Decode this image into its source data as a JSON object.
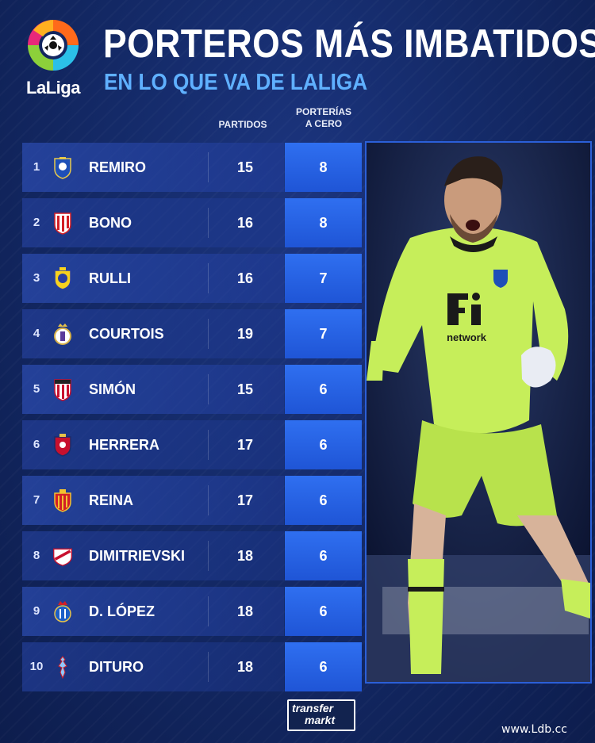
{
  "brand": {
    "logo_text": "LaLiga"
  },
  "header": {
    "title": "PORTEROS MÁS IMBATIDOS",
    "subtitle": "EN LO QUE VA DE LALIGA",
    "col_partidos": "PARTIDOS",
    "col_cero_line1": "PORTERÍAS",
    "col_cero_line2": "A CERO"
  },
  "rows": [
    {
      "rank": "1",
      "name": "REMIRO",
      "matches": "15",
      "clean": "8",
      "crest": "real-sociedad-crest"
    },
    {
      "rank": "2",
      "name": "BONO",
      "matches": "16",
      "clean": "8",
      "crest": "sevilla-crest"
    },
    {
      "rank": "3",
      "name": "RULLI",
      "matches": "16",
      "clean": "7",
      "crest": "villarreal-crest"
    },
    {
      "rank": "4",
      "name": "COURTOIS",
      "matches": "19",
      "clean": "7",
      "crest": "real-madrid-crest"
    },
    {
      "rank": "5",
      "name": "SIMÓN",
      "matches": "15",
      "clean": "6",
      "crest": "athletic-crest"
    },
    {
      "rank": "6",
      "name": "HERRERA",
      "matches": "17",
      "clean": "6",
      "crest": "osasuna-crest"
    },
    {
      "rank": "7",
      "name": "REINA",
      "matches": "17",
      "clean": "6",
      "crest": "mallorca-crest"
    },
    {
      "rank": "8",
      "name": "DIMITRIEVSKI",
      "matches": "18",
      "clean": "6",
      "crest": "rayo-crest"
    },
    {
      "rank": "9",
      "name": "D. LÓPEZ",
      "matches": "18",
      "clean": "6",
      "crest": "espanyol-crest"
    },
    {
      "rank": "10",
      "name": "DITURO",
      "matches": "18",
      "clean": "6",
      "crest": "celta-crest"
    }
  ],
  "photo": {
    "sponsor": "network"
  },
  "footer": {
    "tm_line1": "transfer",
    "tm_line2": "markt",
    "watermark": "www.Ldb.cc"
  },
  "colors": {
    "accent": "#5fb0ff",
    "cell": "#2f6ff0",
    "kit": "#c6ee5a"
  }
}
